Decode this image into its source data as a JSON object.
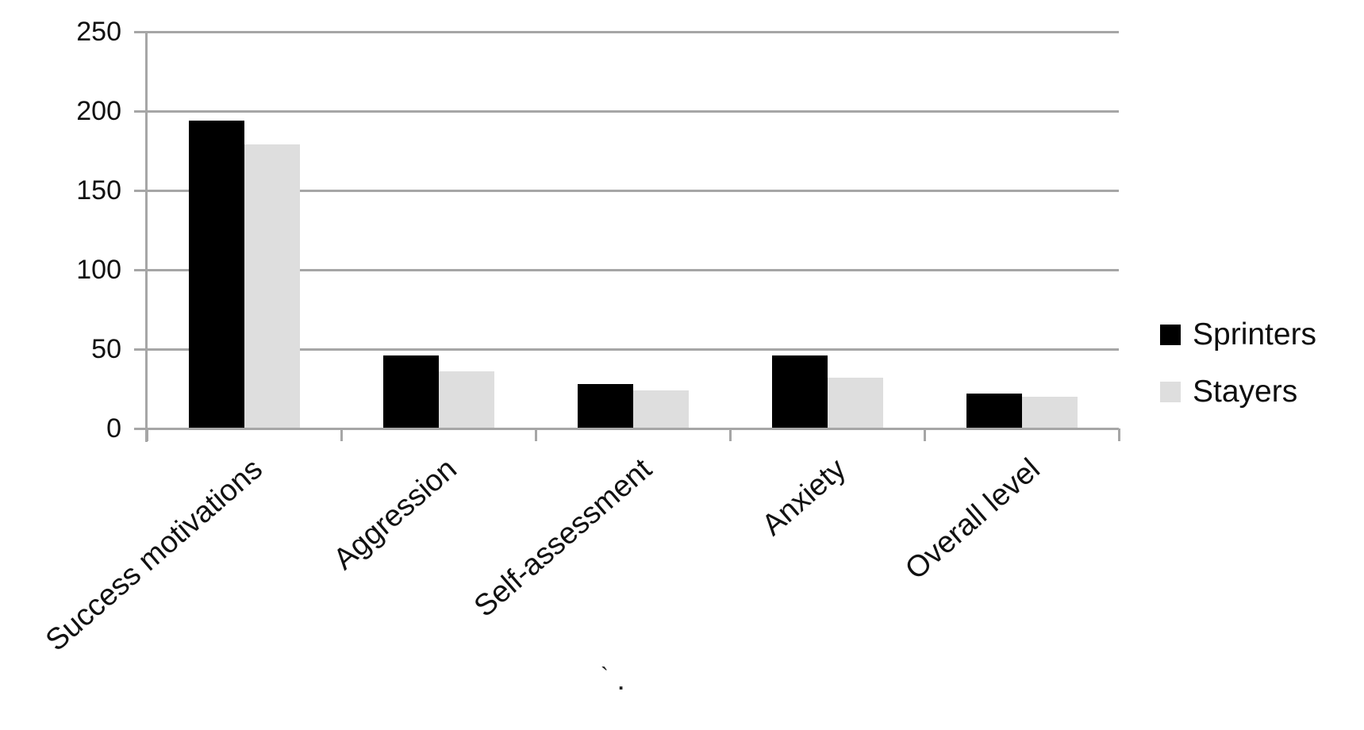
{
  "chart_data": {
    "type": "bar",
    "title": "",
    "categories": [
      "Success motivations",
      "Aggression",
      "Self-assessment",
      "Anxiety",
      "Overall level"
    ],
    "series": [
      {
        "name": "Sprinters",
        "color": "#000000",
        "values": [
          194,
          46,
          28,
          46,
          22
        ]
      },
      {
        "name": "Stayers",
        "color": "#dedede",
        "values": [
          179,
          36,
          24,
          32,
          20
        ]
      }
    ],
    "xlabel": "",
    "ylabel": "",
    "ylim": [
      0,
      250
    ],
    "yticks": [
      0,
      50,
      100,
      150,
      200,
      250
    ],
    "grid": true,
    "grid_color": "#a6a6a6",
    "axis_color": "#a6a6a6",
    "text_color": "#111111",
    "background": "#ffffff",
    "legend_position": "middle-right",
    "bar_orientation": "vertical"
  },
  "annotations": {
    "stray_mark_1": "`",
    "stray_mark_2": "."
  }
}
